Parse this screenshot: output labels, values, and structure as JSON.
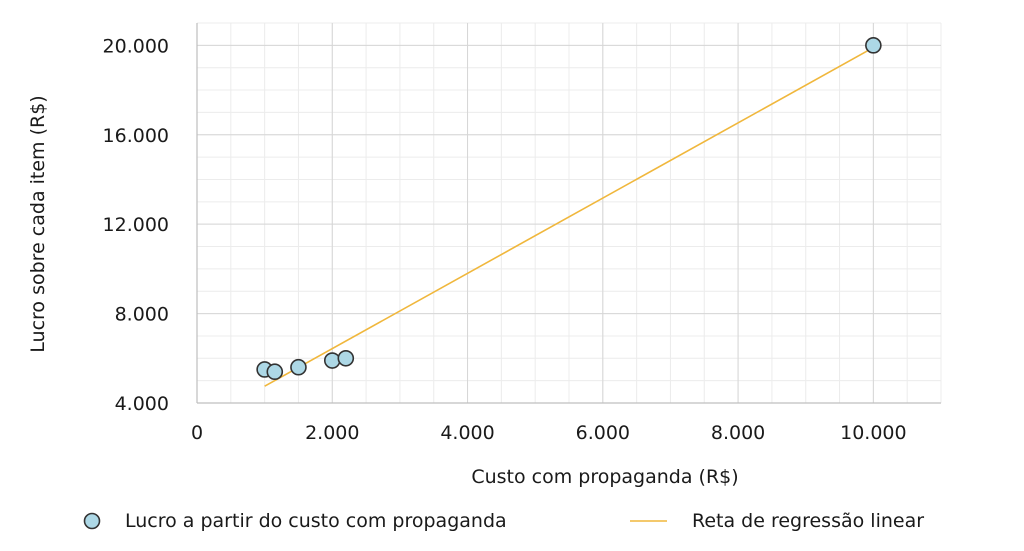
{
  "chart_data": {
    "type": "scatter",
    "xlabel": "Custo com propaganda (R$)",
    "ylabel": "Lucro sobre cada item (R$)",
    "xlim": [
      0,
      11000
    ],
    "ylim": [
      4000,
      21000
    ],
    "x_ticks": [
      0,
      2000,
      4000,
      6000,
      8000,
      10000
    ],
    "x_tick_labels": [
      "0",
      "2.000",
      "4.000",
      "6.000",
      "8.000",
      "10.000"
    ],
    "y_ticks": [
      4000,
      8000,
      12000,
      16000,
      20000
    ],
    "y_tick_labels": [
      "4.000",
      "8.000",
      "12.000",
      "16.000",
      "20.000"
    ],
    "grid": true,
    "legend_position": "bottom",
    "series": [
      {
        "name": "Lucro a partir do custo com propaganda",
        "kind": "scatter",
        "color": "#add8e6",
        "edge_color": "#333333",
        "points": [
          {
            "x": 1000,
            "y": 5500
          },
          {
            "x": 1150,
            "y": 5400
          },
          {
            "x": 1500,
            "y": 5600
          },
          {
            "x": 2000,
            "y": 5900
          },
          {
            "x": 2200,
            "y": 6000
          },
          {
            "x": 10000,
            "y": 20000
          }
        ]
      },
      {
        "name": "Reta de regressão linear",
        "kind": "line",
        "color": "#f0b73c",
        "points": [
          {
            "x": 1000,
            "y": 4750
          },
          {
            "x": 10000,
            "y": 19900
          }
        ]
      }
    ]
  }
}
